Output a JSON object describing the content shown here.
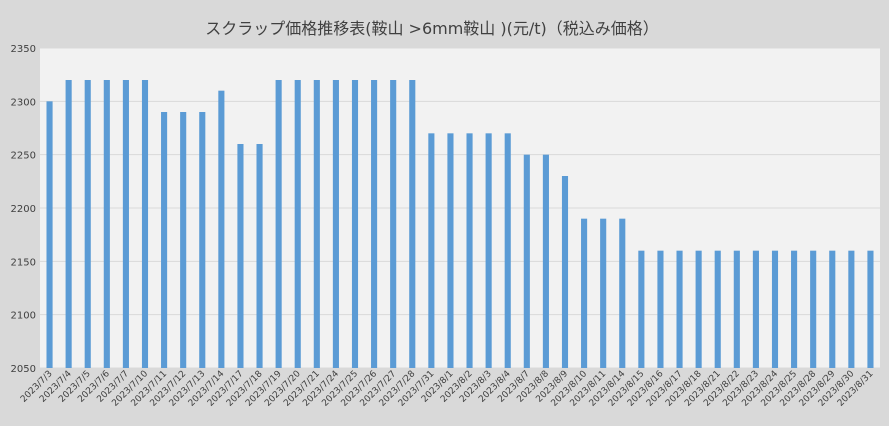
{
  "chart_data": {
    "type": "bar",
    "title": "スクラップ価格推移表(鞍山 >6mm鞍山 )(元/t)（税込み価格）",
    "xlabel": "",
    "ylabel": "",
    "ylim": [
      2050,
      2350
    ],
    "yticks": [
      2050,
      2100,
      2150,
      2200,
      2250,
      2300,
      2350
    ],
    "grid": true,
    "legend": "none",
    "colors": {
      "bar": "#5b9bd5",
      "plot_bg": "#f2f2f2",
      "page_bg": "#d9d9d9",
      "grid": "#d9d9d9",
      "text": "#404040"
    },
    "categories": [
      "2023/7/3",
      "2023/7/4",
      "2023/7/5",
      "2023/7/6",
      "2023/7/7",
      "2023/7/10",
      "2023/7/11",
      "2023/7/12",
      "2023/7/13",
      "2023/7/14",
      "2023/7/17",
      "2023/7/18",
      "2023/7/19",
      "2023/7/20",
      "2023/7/21",
      "2023/7/24",
      "2023/7/25",
      "2023/7/26",
      "2023/7/27",
      "2023/7/28",
      "2023/7/31",
      "2023/8/1",
      "2023/8/2",
      "2023/8/3",
      "2023/8/4",
      "2023/8/7",
      "2023/8/8",
      "2023/8/9",
      "2023/8/10",
      "2023/8/11",
      "2023/8/14",
      "2023/8/15",
      "2023/8/16",
      "2023/8/17",
      "2023/8/18",
      "2023/8/21",
      "2023/8/22",
      "2023/8/23",
      "2023/8/24",
      "2023/8/25",
      "2023/8/28",
      "2023/8/29",
      "2023/8/30",
      "2023/8/31"
    ],
    "values": [
      2300,
      2320,
      2320,
      2320,
      2320,
      2320,
      2290,
      2290,
      2290,
      2310,
      2260,
      2260,
      2320,
      2320,
      2320,
      2320,
      2320,
      2320,
      2320,
      2320,
      2270,
      2270,
      2270,
      2270,
      2270,
      2250,
      2250,
      2230,
      2190,
      2190,
      2190,
      2160,
      2160,
      2160,
      2160,
      2160,
      2160,
      2160,
      2160,
      2160,
      2160,
      2160,
      2160,
      2160
    ]
  }
}
